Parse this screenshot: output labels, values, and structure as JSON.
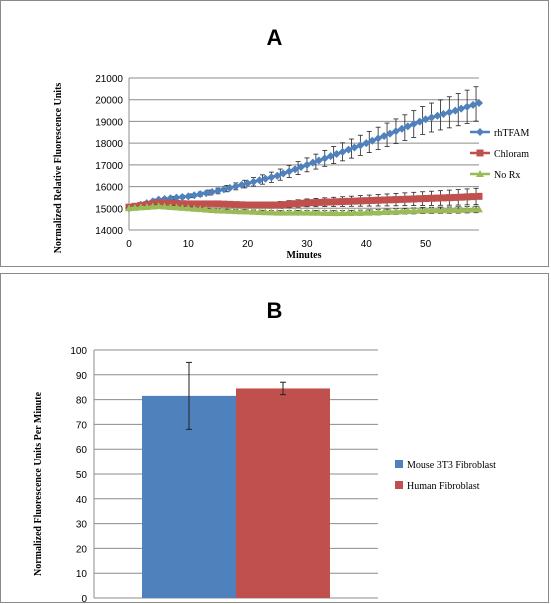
{
  "chart_data": [
    {
      "panel": "A",
      "type": "line",
      "title": "A",
      "xlabel": "Minutes",
      "ylabel": "Normalized Relative Fluorescence Units",
      "xlim": [
        0,
        59
      ],
      "ylim": [
        14000,
        21000
      ],
      "xticks": [
        0,
        10,
        20,
        30,
        40,
        50
      ],
      "yticks": [
        14000,
        15000,
        16000,
        17000,
        18000,
        19000,
        20000,
        21000
      ],
      "grid": "horizontal",
      "legend": "right",
      "series": [
        {
          "name": "rhTFAM",
          "color": "#4f81bd",
          "marker": "diamond",
          "points": [
            [
              0,
              15000
            ],
            [
              5,
              15400
            ],
            [
              10,
              15550
            ],
            [
              15,
              15800
            ],
            [
              20,
              16150
            ],
            [
              25,
              16500
            ],
            [
              30,
              17000
            ],
            [
              35,
              17500
            ],
            [
              40,
              18000
            ],
            [
              45,
              18550
            ],
            [
              50,
              19100
            ],
            [
              55,
              19500
            ],
            [
              59,
              19850
            ]
          ],
          "error": [
            [
              0,
              50
            ],
            [
              10,
              80
            ],
            [
              20,
              180
            ],
            [
              30,
              320
            ],
            [
              40,
              480
            ],
            [
              50,
              650
            ],
            [
              59,
              800
            ]
          ]
        },
        {
          "name": "Chloram",
          "color": "#c0504d",
          "marker": "square",
          "points": [
            [
              0,
              15050
            ],
            [
              5,
              15250
            ],
            [
              10,
              15200
            ],
            [
              15,
              15200
            ],
            [
              20,
              15150
            ],
            [
              25,
              15150
            ],
            [
              30,
              15250
            ],
            [
              35,
              15300
            ],
            [
              40,
              15350
            ],
            [
              45,
              15400
            ],
            [
              50,
              15450
            ],
            [
              55,
              15500
            ],
            [
              59,
              15550
            ]
          ],
          "error": [
            [
              0,
              50
            ],
            [
              10,
              80
            ],
            [
              20,
              120
            ],
            [
              30,
              180
            ],
            [
              40,
              250
            ],
            [
              50,
              320
            ],
            [
              59,
              380
            ]
          ]
        },
        {
          "name": "No Rx",
          "color": "#9bbb59",
          "marker": "triangle",
          "points": [
            [
              0,
              15000
            ],
            [
              5,
              15100
            ],
            [
              10,
              15000
            ],
            [
              15,
              14900
            ],
            [
              20,
              14850
            ],
            [
              25,
              14800
            ],
            [
              30,
              14800
            ],
            [
              35,
              14780
            ],
            [
              40,
              14800
            ],
            [
              45,
              14850
            ],
            [
              50,
              14900
            ],
            [
              55,
              14920
            ],
            [
              59,
              14950
            ]
          ],
          "error": [
            [
              0,
              50
            ],
            [
              10,
              60
            ],
            [
              20,
              80
            ],
            [
              30,
              100
            ],
            [
              40,
              120
            ],
            [
              50,
              140
            ],
            [
              59,
              150
            ]
          ]
        }
      ]
    },
    {
      "panel": "B",
      "type": "bar",
      "title": "B",
      "xlabel": "",
      "ylabel": "Normalized Fluorescence Units Per Minute",
      "ylim": [
        0,
        100
      ],
      "yticks": [
        0,
        10,
        20,
        30,
        40,
        50,
        60,
        70,
        80,
        90,
        100
      ],
      "grid": "horizontal",
      "legend": "right",
      "series": [
        {
          "name": "Mouse 3T3 Fibroblast",
          "value": 81.5,
          "error": 13.5,
          "color": "#4f81bd"
        },
        {
          "name": "Human Fibroblast",
          "value": 84.5,
          "error": 2.5,
          "color": "#c0504d"
        }
      ]
    }
  ]
}
